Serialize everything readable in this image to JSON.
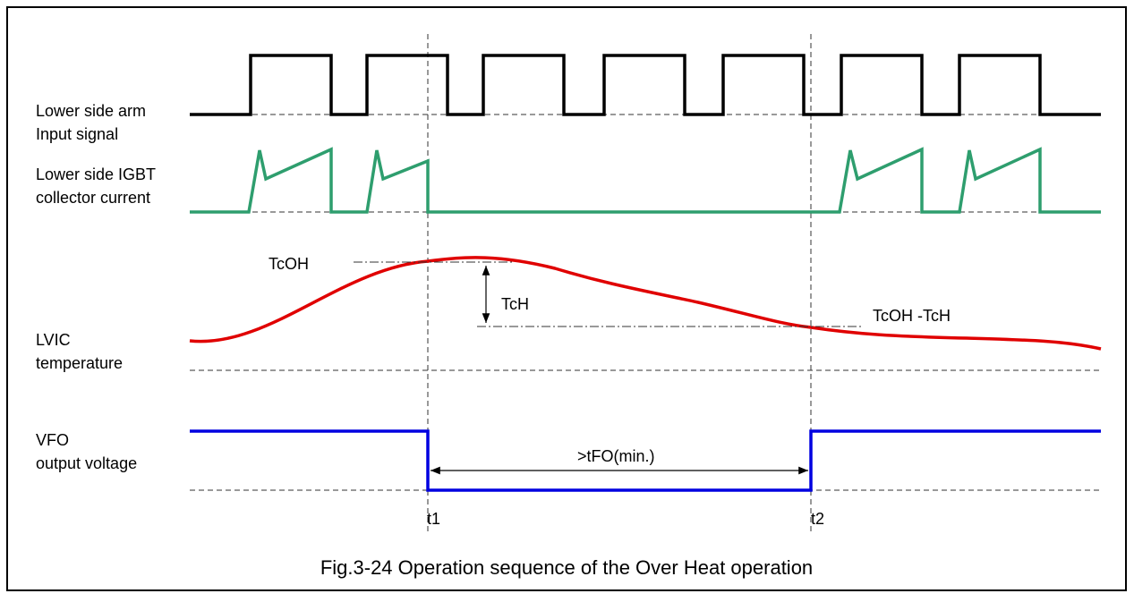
{
  "signals": [
    {
      "label_lines": [
        "Lower side arm",
        "Input signal"
      ]
    },
    {
      "label_lines": [
        "Lower side IGBT",
        "collector current"
      ]
    },
    {
      "label_lines": [
        "LVIC",
        "temperature"
      ]
    },
    {
      "label_lines": [
        "VFO",
        "output voltage"
      ]
    }
  ],
  "annotations": {
    "tcoh": "TcOH",
    "tch": "TcH",
    "tcoh_minus_tch": "TcOH -TcH",
    "tfo": ">tFO(min.)",
    "t1": "t1",
    "t2": "t2"
  },
  "caption": "Fig.3-24 Operation sequence of the Over Heat operation"
}
